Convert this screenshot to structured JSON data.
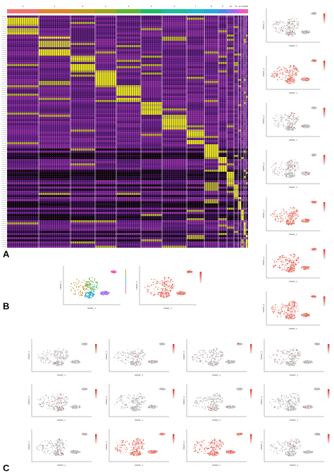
{
  "panel_labels": [
    "A",
    "B",
    "C"
  ],
  "heatmap": {
    "clusters": [
      "0",
      "1",
      "2",
      "3",
      "4",
      "5",
      "6",
      "7",
      "8",
      "9",
      "10",
      "11",
      "12",
      "13",
      "14",
      "15"
    ]
  },
  "umap": {
    "x_label": "UMAP_1",
    "y_label": "UMAP_2"
  }
}
